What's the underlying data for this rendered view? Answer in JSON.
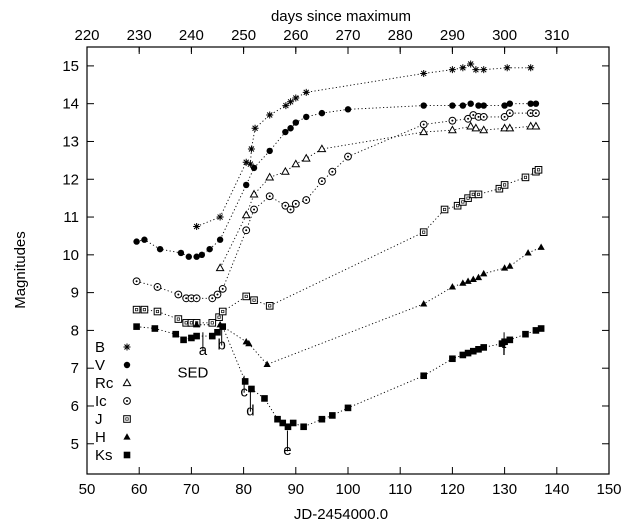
{
  "chart_data": {
    "type": "scatter",
    "xlabel": "JD-2454000.0",
    "ylabel": "Magnitudes",
    "x2label": "days since maximum",
    "xlim": [
      50,
      150
    ],
    "ylim": [
      15.5,
      4.2
    ],
    "y_inverted": true,
    "x_ticks": [
      "50",
      "60",
      "70",
      "80",
      "90",
      "100",
      "110",
      "120",
      "130",
      "140",
      "150"
    ],
    "y_ticks": [
      "5",
      "6",
      "7",
      "8",
      "9",
      "10",
      "11",
      "12",
      "13",
      "14",
      "15"
    ],
    "x2_ticks": [
      "220",
      "230",
      "240",
      "250",
      "260",
      "270",
      "280",
      "290",
      "300",
      "310"
    ],
    "x2_offset": 170,
    "annotations": [
      {
        "text": "SED",
        "x": 70.3,
        "y": 6.75
      },
      {
        "text": "a",
        "x": 72.2,
        "y": 7.35,
        "line_top": 7.45,
        "line_bottom": 7.95
      },
      {
        "text": "b",
        "x": 75.8,
        "y": 7.5,
        "line_top": 7.6,
        "line_bottom": 8.15
      },
      {
        "text": "c",
        "x": 80.1,
        "y": 6.25,
        "line_top": 6.35,
        "line_bottom": 6.8
      },
      {
        "text": "d",
        "x": 81.3,
        "y": 5.75,
        "line_top": 5.85,
        "line_bottom": 6.45
      },
      {
        "text": "e",
        "x": 88.4,
        "y": 4.7,
        "line_top": 4.8,
        "line_bottom": 5.35
      },
      {
        "text": "f",
        "x": 129.9,
        "y": 7.35,
        "line_top": 7.45,
        "line_bottom": 7.95
      }
    ],
    "series": [
      {
        "name": "B",
        "marker": "asterisk",
        "points": [
          [
            71,
            10.75
          ],
          [
            75.5,
            11.0
          ],
          [
            80.5,
            12.45
          ],
          [
            81.3,
            12.4
          ],
          [
            81.5,
            12.8
          ],
          [
            82.2,
            13.35
          ],
          [
            85,
            13.7
          ],
          [
            88.1,
            13.95
          ],
          [
            89,
            14.05
          ],
          [
            90,
            14.15
          ],
          [
            92,
            14.3
          ],
          [
            114.5,
            14.8
          ],
          [
            120,
            14.9
          ],
          [
            122,
            14.95
          ],
          [
            123.5,
            15.05
          ],
          [
            124.5,
            14.9
          ],
          [
            126,
            14.9
          ],
          [
            130.5,
            14.95
          ],
          [
            135,
            14.95
          ]
        ]
      },
      {
        "name": "V",
        "marker": "circle-filled",
        "points": [
          [
            59.5,
            10.35
          ],
          [
            61,
            10.4
          ],
          [
            64,
            10.15
          ],
          [
            68,
            10.05
          ],
          [
            69.5,
            9.95
          ],
          [
            71,
            9.95
          ],
          [
            72,
            10.0
          ],
          [
            73.5,
            10.15
          ],
          [
            75.5,
            10.4
          ],
          [
            80.5,
            11.85
          ],
          [
            82,
            12.3
          ],
          [
            85,
            12.75
          ],
          [
            88,
            13.25
          ],
          [
            89,
            13.35
          ],
          [
            90,
            13.5
          ],
          [
            92,
            13.65
          ],
          [
            95,
            13.75
          ],
          [
            100,
            13.85
          ],
          [
            114.5,
            13.95
          ],
          [
            120,
            13.95
          ],
          [
            122,
            13.95
          ],
          [
            123.5,
            14.0
          ],
          [
            125,
            13.95
          ],
          [
            126,
            13.95
          ],
          [
            130,
            13.95
          ],
          [
            131,
            14.0
          ],
          [
            135,
            14.0
          ],
          [
            136,
            14.0
          ]
        ]
      },
      {
        "name": "Rc",
        "marker": "triangle-open",
        "points": [
          [
            75.5,
            9.65
          ],
          [
            80.5,
            11.05
          ],
          [
            82,
            11.6
          ],
          [
            85,
            12.05
          ],
          [
            88,
            12.2
          ],
          [
            90,
            12.4
          ],
          [
            92,
            12.55
          ],
          [
            95,
            12.8
          ],
          [
            114.5,
            13.25
          ],
          [
            120,
            13.3
          ],
          [
            123.5,
            13.4
          ],
          [
            124.5,
            13.35
          ],
          [
            126,
            13.3
          ],
          [
            130,
            13.35
          ],
          [
            131,
            13.35
          ],
          [
            135,
            13.4
          ],
          [
            136,
            13.4
          ]
        ]
      },
      {
        "name": "Ic",
        "marker": "circle-open",
        "points": [
          [
            59.5,
            9.3
          ],
          [
            63.5,
            9.15
          ],
          [
            67.5,
            8.95
          ],
          [
            69,
            8.85
          ],
          [
            70,
            8.85
          ],
          [
            71,
            8.85
          ],
          [
            74,
            8.85
          ],
          [
            75,
            8.95
          ],
          [
            76,
            9.1
          ],
          [
            80.5,
            10.65
          ],
          [
            82,
            11.2
          ],
          [
            85,
            11.55
          ],
          [
            88,
            11.3
          ],
          [
            89,
            11.2
          ],
          [
            90,
            11.35
          ],
          [
            92,
            11.45
          ],
          [
            95,
            11.95
          ],
          [
            97,
            12.2
          ],
          [
            100,
            12.6
          ],
          [
            114.5,
            13.45
          ],
          [
            120,
            13.55
          ],
          [
            123,
            13.6
          ],
          [
            124,
            13.7
          ],
          [
            125,
            13.65
          ],
          [
            126,
            13.65
          ],
          [
            130,
            13.65
          ],
          [
            131,
            13.75
          ],
          [
            135,
            13.75
          ],
          [
            136,
            13.75
          ]
        ]
      },
      {
        "name": "J",
        "marker": "square-open",
        "points": [
          [
            59.5,
            8.55
          ],
          [
            61,
            8.55
          ],
          [
            63.5,
            8.5
          ],
          [
            67.5,
            8.3
          ],
          [
            69,
            8.2
          ],
          [
            70,
            8.2
          ],
          [
            71,
            8.2
          ],
          [
            74,
            8.2
          ],
          [
            75.3,
            8.35
          ],
          [
            76,
            8.5
          ],
          [
            80.5,
            8.9
          ],
          [
            82,
            8.8
          ],
          [
            85,
            8.65
          ],
          [
            114.5,
            10.6
          ],
          [
            118.5,
            11.2
          ],
          [
            121,
            11.3
          ],
          [
            122,
            11.4
          ],
          [
            123,
            11.5
          ],
          [
            124,
            11.6
          ],
          [
            125,
            11.6
          ],
          [
            129,
            11.75
          ],
          [
            130,
            11.85
          ],
          [
            134,
            12.05
          ],
          [
            136,
            12.2
          ],
          [
            136.5,
            12.25
          ]
        ]
      },
      {
        "name": "H",
        "marker": "triangle-filled",
        "points": [
          [
            71,
            8.15
          ],
          [
            75.5,
            8.15
          ],
          [
            80.5,
            7.7
          ],
          [
            81,
            7.65
          ],
          [
            84.5,
            7.1
          ],
          [
            114.5,
            8.7
          ],
          [
            120,
            9.15
          ],
          [
            122,
            9.25
          ],
          [
            123,
            9.3
          ],
          [
            124,
            9.35
          ],
          [
            125,
            9.4
          ],
          [
            126,
            9.5
          ],
          [
            130,
            9.65
          ],
          [
            131,
            9.7
          ],
          [
            134.5,
            10.05
          ],
          [
            137,
            10.2
          ]
        ]
      },
      {
        "name": "Ks",
        "marker": "square-filled",
        "points": [
          [
            59.5,
            8.1
          ],
          [
            63,
            8.05
          ],
          [
            67,
            7.9
          ],
          [
            68.5,
            7.75
          ],
          [
            70,
            7.8
          ],
          [
            71,
            7.85
          ],
          [
            74,
            7.85
          ],
          [
            75,
            7.95
          ],
          [
            76,
            8.1
          ],
          [
            80.3,
            6.65
          ],
          [
            81.5,
            6.45
          ],
          [
            84,
            6.2
          ],
          [
            86.5,
            5.65
          ],
          [
            87.5,
            5.55
          ],
          [
            88.5,
            5.45
          ],
          [
            89.5,
            5.55
          ],
          [
            91.5,
            5.45
          ],
          [
            95,
            5.65
          ],
          [
            97,
            5.75
          ],
          [
            100,
            5.95
          ],
          [
            114.5,
            6.8
          ],
          [
            120,
            7.25
          ],
          [
            122,
            7.35
          ],
          [
            123,
            7.4
          ],
          [
            124,
            7.45
          ],
          [
            125,
            7.5
          ],
          [
            126,
            7.55
          ],
          [
            129.5,
            7.65
          ],
          [
            130,
            7.7
          ],
          [
            131,
            7.75
          ],
          [
            134,
            7.9
          ],
          [
            136,
            8.0
          ],
          [
            137,
            8.05
          ]
        ]
      }
    ],
    "legend": {
      "placement": "bottom-left",
      "entries": [
        "B",
        "V",
        "Rc",
        "Ic",
        "J",
        "H",
        "Ks"
      ]
    }
  }
}
